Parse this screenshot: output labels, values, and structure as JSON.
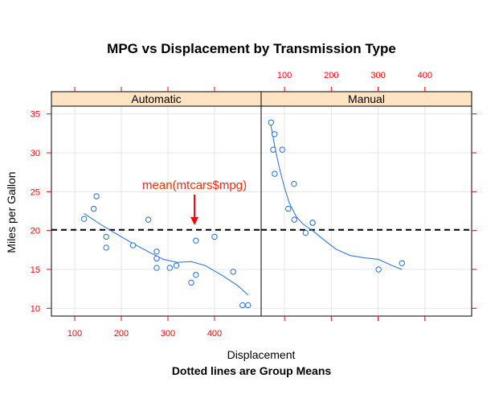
{
  "chart_data": {
    "type": "scatter",
    "title": "MPG vs Displacement by Transmission Type",
    "subtitle": "Dotted lines are Group Means",
    "xlabel": "Displacement",
    "ylabel": "Miles per Gallon",
    "xlim": [
      50,
      500
    ],
    "ylim": [
      9,
      36
    ],
    "x_ticks": [
      100,
      200,
      300,
      400
    ],
    "y_ticks": [
      10,
      15,
      20,
      25,
      30,
      35
    ],
    "grid": true,
    "reference_line": {
      "y": 20.09,
      "style": "dashed"
    },
    "annotation": {
      "text": "mean(mtcars$mpg)",
      "x": 357,
      "y": 20.8
    },
    "colors": {
      "points": "#1f6fe0",
      "smooth": "#1f6fe0",
      "ticks": "#ff0000",
      "strip_bg": "#ffe4c4",
      "annotation": "#ff2a00",
      "arrow": "#ff0000"
    },
    "panels": [
      {
        "name": "Automatic",
        "points": [
          {
            "x": 258,
            "y": 21.4
          },
          {
            "x": 360,
            "y": 18.7
          },
          {
            "x": 225,
            "y": 18.1
          },
          {
            "x": 360,
            "y": 14.3
          },
          {
            "x": 146.7,
            "y": 24.4
          },
          {
            "x": 140.8,
            "y": 22.8
          },
          {
            "x": 167.6,
            "y": 19.2
          },
          {
            "x": 167.6,
            "y": 17.8
          },
          {
            "x": 275.8,
            "y": 16.4
          },
          {
            "x": 275.8,
            "y": 17.3
          },
          {
            "x": 275.8,
            "y": 15.2
          },
          {
            "x": 472,
            "y": 10.4
          },
          {
            "x": 460,
            "y": 10.4
          },
          {
            "x": 440,
            "y": 14.7
          },
          {
            "x": 120.1,
            "y": 21.5
          },
          {
            "x": 318,
            "y": 15.5
          },
          {
            "x": 304,
            "y": 15.2
          },
          {
            "x": 350,
            "y": 13.3
          },
          {
            "x": 400,
            "y": 19.2
          }
        ],
        "smooth": [
          {
            "x": 120,
            "y": 22.2
          },
          {
            "x": 150,
            "y": 21.0
          },
          {
            "x": 180,
            "y": 19.9
          },
          {
            "x": 220,
            "y": 18.5
          },
          {
            "x": 260,
            "y": 17.2
          },
          {
            "x": 290,
            "y": 16.3
          },
          {
            "x": 320,
            "y": 15.9
          },
          {
            "x": 350,
            "y": 16.0
          },
          {
            "x": 380,
            "y": 15.5
          },
          {
            "x": 420,
            "y": 14.1
          },
          {
            "x": 450,
            "y": 12.9
          },
          {
            "x": 472,
            "y": 11.7
          }
        ]
      },
      {
        "name": "Manual",
        "points": [
          {
            "x": 160,
            "y": 21.0
          },
          {
            "x": 160,
            "y": 21.0
          },
          {
            "x": 108,
            "y": 22.8
          },
          {
            "x": 78.7,
            "y": 32.4
          },
          {
            "x": 75.7,
            "y": 30.4
          },
          {
            "x": 71.1,
            "y": 33.9
          },
          {
            "x": 79,
            "y": 27.3
          },
          {
            "x": 120.3,
            "y": 26.0
          },
          {
            "x": 95.1,
            "y": 30.4
          },
          {
            "x": 351,
            "y": 15.8
          },
          {
            "x": 145,
            "y": 19.7
          },
          {
            "x": 301,
            "y": 15.0
          },
          {
            "x": 121,
            "y": 21.4
          }
        ],
        "smooth": [
          {
            "x": 71,
            "y": 33.5
          },
          {
            "x": 80,
            "y": 30.5
          },
          {
            "x": 90,
            "y": 27.8
          },
          {
            "x": 100,
            "y": 25.5
          },
          {
            "x": 110,
            "y": 23.6
          },
          {
            "x": 125,
            "y": 21.8
          },
          {
            "x": 140,
            "y": 20.8
          },
          {
            "x": 160,
            "y": 20.0
          },
          {
            "x": 180,
            "y": 19.0
          },
          {
            "x": 210,
            "y": 17.6
          },
          {
            "x": 240,
            "y": 16.8
          },
          {
            "x": 270,
            "y": 16.5
          },
          {
            "x": 300,
            "y": 16.3
          },
          {
            "x": 330,
            "y": 15.5
          },
          {
            "x": 351,
            "y": 15.0
          }
        ]
      }
    ]
  }
}
